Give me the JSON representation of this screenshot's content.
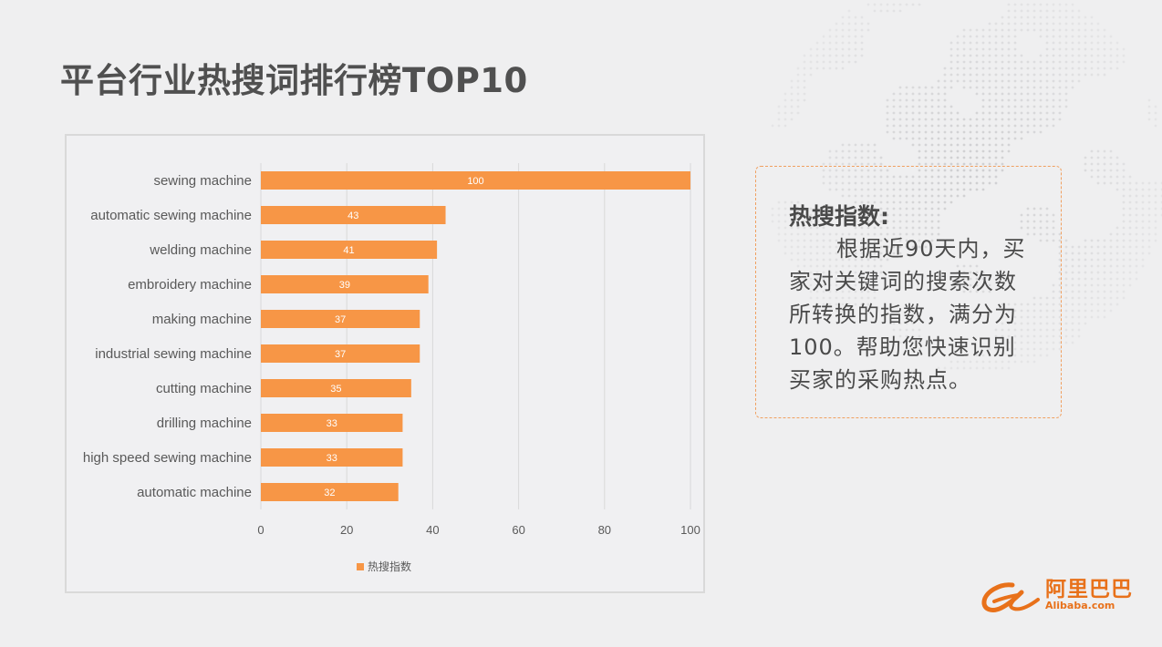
{
  "page": {
    "title": "平台行业热搜词排行榜TOP10"
  },
  "info": {
    "heading": "热搜指数:",
    "body": "根据近90天内，买家对关键词的搜索次数所转换的指数，满分为100。帮助您快速识别买家的采购热点。"
  },
  "logo": {
    "cn": "阿里巴巴",
    "en": "Alibaba.com"
  },
  "colors": {
    "bar": "#f79646",
    "grid": "#d9d9d9",
    "text": "#595959",
    "accent": "#e8711a"
  },
  "chart_data": {
    "type": "bar",
    "orientation": "horizontal",
    "categories": [
      "sewing machine",
      "automatic sewing machine",
      "welding machine",
      "embroidery machine",
      "making machine",
      "industrial sewing machine",
      "cutting machine",
      "drilling machine",
      "high speed sewing machine",
      "automatic machine"
    ],
    "series": [
      {
        "name": "热搜指数",
        "values": [
          100,
          43,
          41,
          39,
          37,
          37,
          35,
          33,
          33,
          32
        ]
      }
    ],
    "xlim": [
      0,
      100
    ],
    "xticks": [
      0,
      20,
      40,
      60,
      80,
      100
    ],
    "grid": true,
    "legend": "bottom",
    "data_labels": true
  }
}
